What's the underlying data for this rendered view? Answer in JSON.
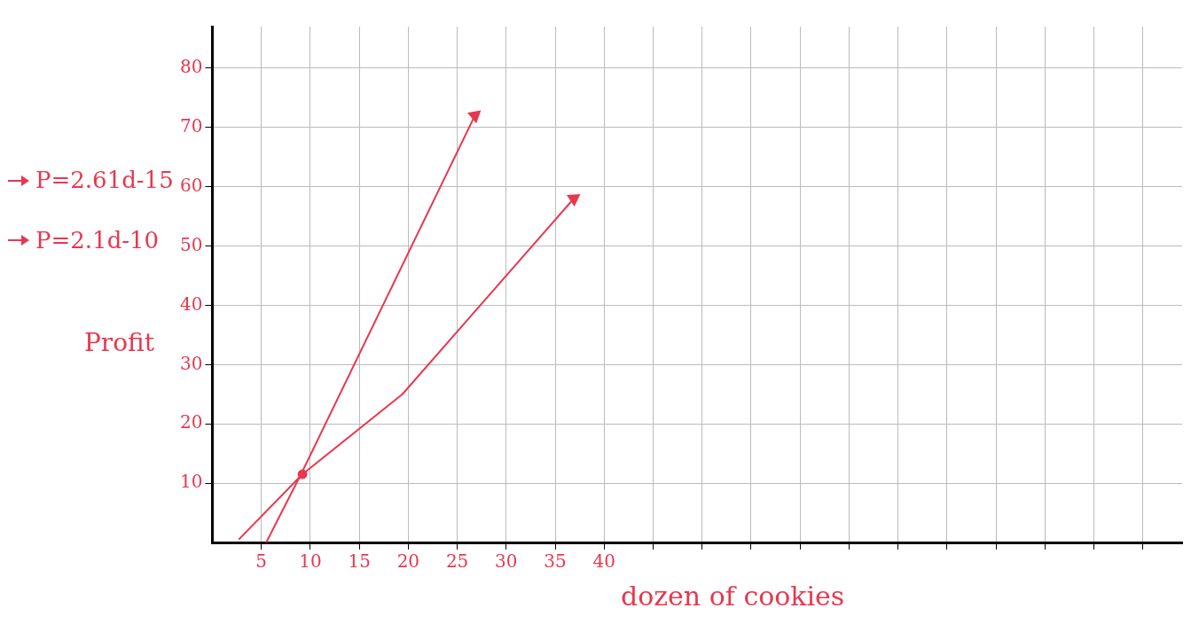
{
  "chart_data": {
    "type": "line",
    "xlabel": "dozen of cookies",
    "ylabel": "Profit",
    "series": [
      {
        "name": "P=2.61d-15",
        "color": "#e8374f",
        "x": [
          5.5,
          9.2,
          26.8
        ],
        "values": [
          0,
          12,
          72
        ]
      },
      {
        "name": "P=2.1d-10",
        "color": "#e8374f",
        "x": [
          2.7,
          9.2,
          19.4,
          36.9
        ],
        "values": [
          0.5,
          11.5,
          25,
          58
        ]
      },
      {
        "type": "scatter",
        "color": "#e8374f",
        "x": [
          9.2
        ],
        "values": [
          11.5
        ],
        "marker": "circle"
      }
    ],
    "xlim": [
      0,
      99
    ],
    "ylim": [
      0,
      87
    ],
    "xticks": [
      5,
      10,
      15,
      20,
      25,
      30,
      35,
      40,
      {
        "value": 45,
        "label": null
      },
      {
        "value": 50,
        "label": null
      },
      {
        "value": 55,
        "label": null
      },
      {
        "value": 60,
        "label": null
      },
      {
        "value": 65,
        "label": null
      },
      {
        "value": 70,
        "label": null
      },
      {
        "value": 75,
        "label": null
      },
      {
        "value": 80,
        "label": null
      },
      {
        "value": 85,
        "label": null
      },
      {
        "value": 90,
        "label": null
      },
      {
        "value": 95,
        "label": null
      }
    ],
    "yticks": [
      10,
      20,
      30,
      40,
      50,
      60,
      70,
      80
    ],
    "grid": true,
    "legend": "left",
    "marker": "none",
    "line_style": "solid"
  }
}
